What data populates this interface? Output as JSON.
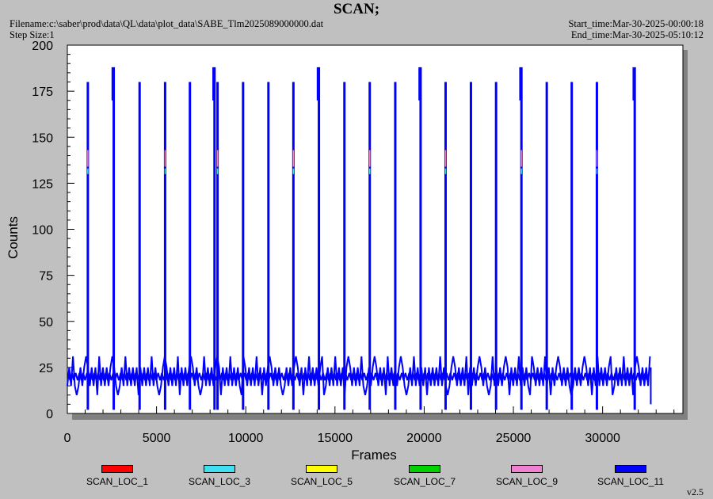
{
  "header": {
    "title": "SCAN;",
    "filename": "Filename:c:\\saber\\prod\\data\\QL\\data\\plot_data\\SABE_Tlm2025089000000.dat",
    "step_size": "Step Size:1",
    "start_time": "Start_time:Mar-30-2025-00:00:18",
    "end_time": "End_time:Mar-30-2025-05:10:12"
  },
  "version": "v2.5",
  "colors": {
    "plot_bg": "#ffffff",
    "window_bg": "#c0c0c0",
    "shadow": "#808080"
  },
  "chart_data": {
    "type": "line",
    "xlabel": "Frames",
    "ylabel": "Counts",
    "xlim": [
      0,
      34500
    ],
    "ylim": [
      0,
      200
    ],
    "x_ticks": [
      0,
      5000,
      10000,
      15000,
      20000,
      25000,
      30000
    ],
    "y_ticks": [
      0,
      25,
      50,
      75,
      100,
      125,
      150,
      175,
      200
    ],
    "x_extent": [
      0,
      32700
    ],
    "baseline": {
      "period_frames": 210,
      "low": 15,
      "high": 25,
      "occasional_high": 31,
      "occasional_low": 10
    },
    "spikes": [
      {
        "x": 1150,
        "peak": 180
      },
      {
        "x": 2600,
        "peak": 188
      },
      {
        "x": 4050,
        "peak": 180
      },
      {
        "x": 5480,
        "peak": 180
      },
      {
        "x": 6870,
        "peak": 180
      },
      {
        "x": 8250,
        "peak": 188
      },
      {
        "x": 8420,
        "peak": 180
      },
      {
        "x": 9850,
        "peak": 180
      },
      {
        "x": 11270,
        "peak": 180
      },
      {
        "x": 12670,
        "peak": 180
      },
      {
        "x": 14100,
        "peak": 188
      },
      {
        "x": 15530,
        "peak": 180
      },
      {
        "x": 16950,
        "peak": 180
      },
      {
        "x": 18380,
        "peak": 180
      },
      {
        "x": 19800,
        "peak": 188
      },
      {
        "x": 21200,
        "peak": 180
      },
      {
        "x": 22620,
        "peak": 180
      },
      {
        "x": 24030,
        "peak": 180
      },
      {
        "x": 25450,
        "peak": 188
      },
      {
        "x": 26870,
        "peak": 180
      },
      {
        "x": 28270,
        "peak": 180
      },
      {
        "x": 29680,
        "peak": 180
      },
      {
        "x": 31800,
        "peak": 188
      }
    ],
    "series": [
      {
        "name": "SCAN_LOC_1",
        "color": "#ff0000"
      },
      {
        "name": "SCAN_LOC_3",
        "color": "#40e0f0"
      },
      {
        "name": "SCAN_LOC_5",
        "color": "#ffff00"
      },
      {
        "name": "SCAN_LOC_7",
        "color": "#00d000"
      },
      {
        "name": "SCAN_LOC_9",
        "color": "#f080d0"
      },
      {
        "name": "SCAN_LOC_11",
        "color": "#0000ff"
      }
    ]
  }
}
